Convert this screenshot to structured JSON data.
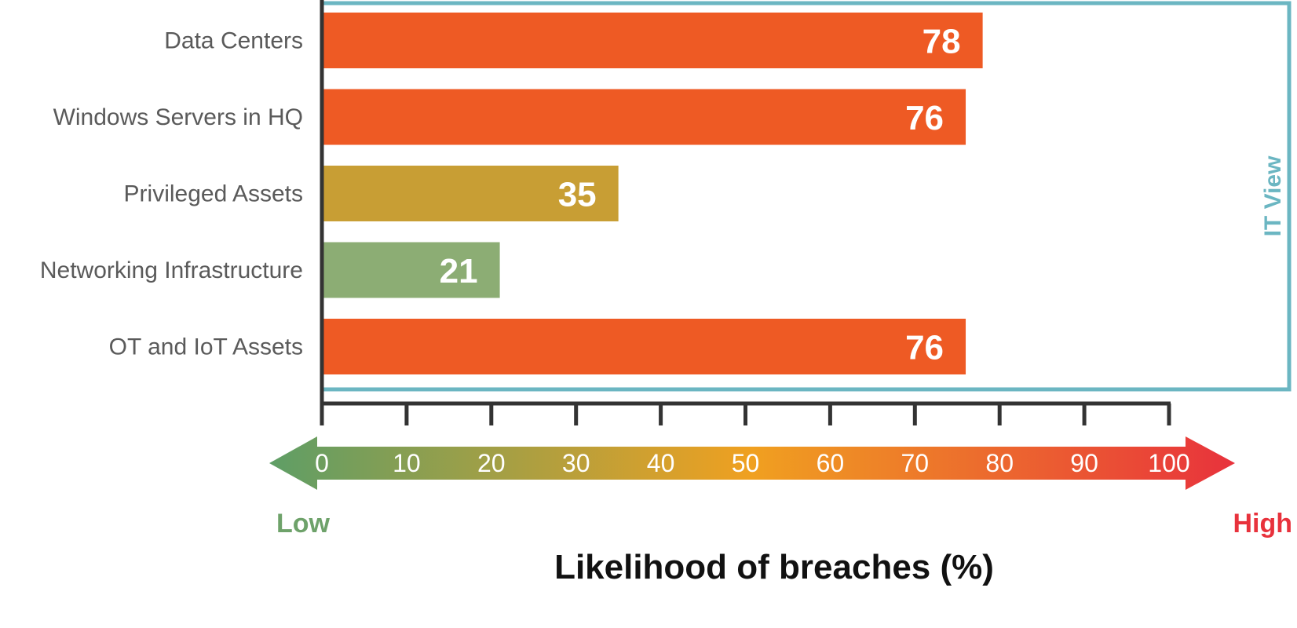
{
  "chart_data": {
    "type": "bar",
    "orientation": "horizontal",
    "categories": [
      "Data Centers",
      "Windows Servers in HQ",
      "Privileged Assets",
      "Networking Infrastructure",
      "OT and IoT Assets"
    ],
    "values": [
      78,
      76,
      35,
      21,
      76
    ],
    "value_labels": [
      "78",
      "76",
      "35",
      "21",
      "76"
    ],
    "bar_colors": [
      "#ee5a24",
      "#ee5a24",
      "#c89e34",
      "#8cad74",
      "#ee5a24"
    ],
    "xlim": [
      0,
      100
    ],
    "x_ticks": [
      "0",
      "10",
      "20",
      "30",
      "40",
      "50",
      "60",
      "70",
      "80",
      "90",
      "100"
    ],
    "scale_low_label": "Low",
    "scale_high_label": "High",
    "xlabel": "Likelihood of breaches (%)",
    "group_label": "IT View",
    "group_color": "#6bb6c2",
    "gradient_colors": [
      "#5e9e66",
      "#f0a020",
      "#e8323c"
    ]
  }
}
